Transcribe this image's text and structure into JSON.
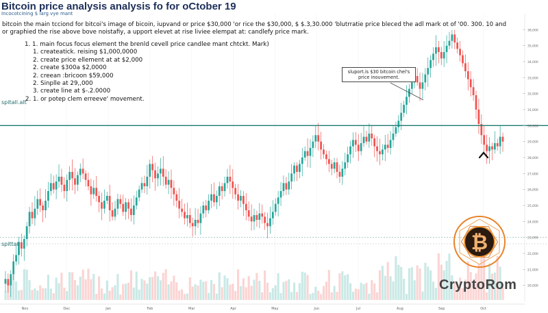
{
  "header": {
    "title": "Bitcoin price analysis analysis fo for oCtober 19",
    "subtitle": "Incocotcining $ larg vye mant",
    "paragraph": "bitcoin the main tcciond for bitcoi's image of bicoin, iupvand or price $30,000 'or rice the $30,000, $ $.3,30.000 'blutrratie price bleced the adl mark ot of '00. 300. 10 and or graphied the rise above bove noistafiy, a upport elevet at rise liviee elempat at: candlefy price mark."
  },
  "list": [
    {
      "text": "1. 1. main focus focus element the brenld cevell price candlee mant chtckt. Mark)",
      "sub": false
    },
    {
      "text": "1. createatick. reising $1,000,0000",
      "sub": true
    },
    {
      "text": "2. create price ellement at at $2,000",
      "sub": true
    },
    {
      "text": "2. create $300a $2,0000",
      "sub": true
    },
    {
      "text": "2. creean :bricoon $59,000",
      "sub": true
    },
    {
      "text": "2. Sinplle at 29,,000",
      "sub": true
    },
    {
      "text": "3. create line at $-.2.0000",
      "sub": true
    },
    {
      "text": "2. 1. or potep clem erreeve' movement.",
      "sub": false
    }
  ],
  "callout": "sluport.is $30 bitcoin chel's price inouvement.",
  "labels": {
    "support_top": "spitall.alt",
    "support_bottom": "spittall"
  },
  "logo": {
    "text": "CryptoRom",
    "symbol": "₿",
    "ring_color": "#e8832a"
  },
  "colors": {
    "up": "#26a69a",
    "down": "#ef5350",
    "support_line": "#1a7a72"
  },
  "chart_data": {
    "type": "candlestick",
    "title": "",
    "xlabel": "",
    "ylabel": "",
    "x_ticks": [
      "Nov",
      "Dec",
      "Jan",
      "Feb",
      "Mar",
      "Apr",
      "May",
      "Jun",
      "Jul",
      "Aug",
      "Sep",
      "Oct"
    ],
    "ylim": [
      19000,
      37000
    ],
    "support_level": 30000,
    "lower_level": 23000,
    "closes": [
      20400,
      20000,
      20700,
      21500,
      21900,
      22700,
      22300,
      22900,
      23700,
      24600,
      24200,
      24800,
      25400,
      25000,
      24700,
      25300,
      25900,
      26400,
      26000,
      26500,
      26800,
      26300,
      25900,
      26600,
      27100,
      26700,
      26300,
      26900,
      27300,
      27000,
      26600,
      26200,
      25700,
      26100,
      25600,
      25200,
      24800,
      25300,
      25600,
      24700,
      24300,
      24800,
      25400,
      25100,
      24600,
      25200,
      24800,
      24400,
      25000,
      25500,
      26000,
      26400,
      26200,
      26800,
      27600,
      27200,
      26700,
      27000,
      27300,
      26800,
      26300,
      26600,
      26100,
      25700,
      25300,
      24800,
      24600,
      24200,
      24400,
      23900,
      23700,
      24100,
      23900,
      24500,
      25000,
      24700,
      25300,
      25700,
      25200,
      25600,
      26200,
      25900,
      26400,
      26800,
      26500,
      26100,
      25700,
      25300,
      25600,
      25100,
      24700,
      24300,
      24000,
      24400,
      24100,
      24500,
      24300,
      23900,
      23700,
      24200,
      24600,
      25100,
      25500,
      25900,
      26400,
      26000,
      26500,
      27000,
      27500,
      27100,
      27600,
      28000,
      28400,
      28100,
      28600,
      29000,
      29400,
      29000,
      28500,
      28200,
      27900,
      27600,
      27300,
      27700,
      27100,
      26800,
      27300,
      27700,
      28200,
      28700,
      29100,
      28800,
      28400,
      28900,
      29300,
      29000,
      29500,
      29200,
      28700,
      28400,
      28200,
      28500,
      28800,
      28600,
      29100,
      29500,
      29900,
      30300,
      30800,
      31300,
      31800,
      32300,
      32700,
      33100,
      32700,
      32300,
      32700,
      33200,
      33600,
      34100,
      34500,
      34900,
      34600,
      34200,
      34600,
      35000,
      35300,
      35700,
      35200,
      34800,
      34400,
      33900,
      33400,
      32900,
      32400,
      31900,
      31000,
      30100,
      29400,
      28800,
      28400,
      28700,
      28500,
      28900,
      28700,
      29300,
      29000
    ]
  }
}
